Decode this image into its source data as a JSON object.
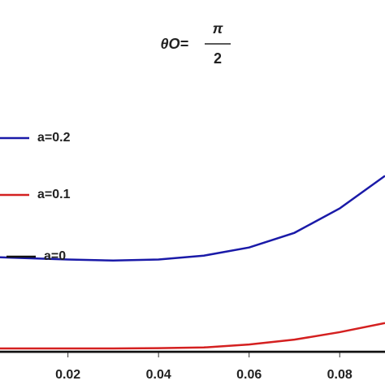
{
  "chart_data": {
    "type": "line",
    "title": {
      "prefix": "θO=",
      "numerator": "π",
      "denominator": "2"
    },
    "x": [
      0.005,
      0.02,
      0.03,
      0.04,
      0.05,
      0.06,
      0.07,
      0.08,
      0.09
    ],
    "series": [
      {
        "name": "a=0.2",
        "color": "#1a1aa8",
        "values": [
          0.29,
          0.283,
          0.28,
          0.283,
          0.295,
          0.32,
          0.365,
          0.44,
          0.54
        ]
      },
      {
        "name": "a=0.1",
        "color": "#d42020",
        "values": [
          0.01,
          0.01,
          0.01,
          0.011,
          0.013,
          0.022,
          0.037,
          0.06,
          0.088
        ]
      },
      {
        "name": "a=0",
        "color": "#111111",
        "values": [
          0,
          0,
          0,
          0,
          0,
          0,
          0,
          0,
          0
        ]
      }
    ],
    "xlim": [
      0.005,
      0.09
    ],
    "ylim": [
      0,
      1.08
    ],
    "xticks": [
      0.02,
      0.04,
      0.06,
      0.08
    ]
  }
}
